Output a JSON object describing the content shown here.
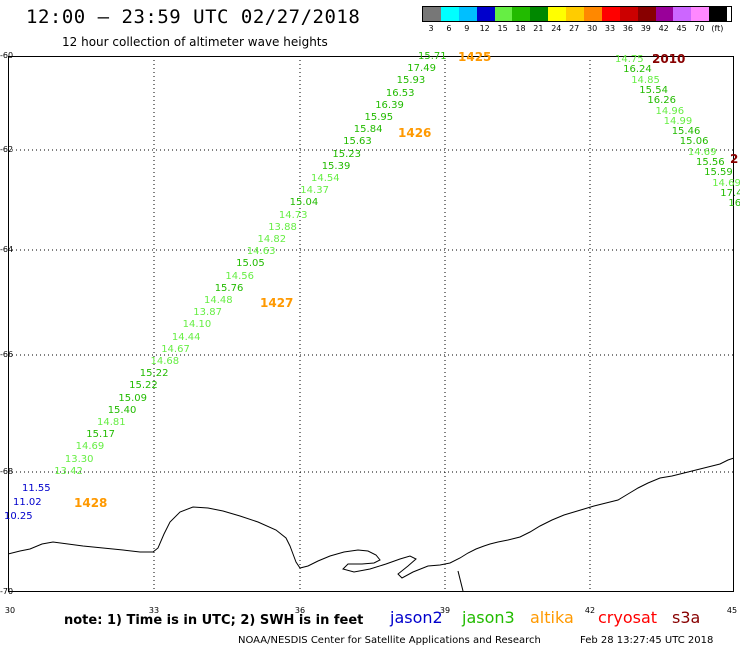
{
  "title": "12:00 – 23:59 UTC 02/27/2018",
  "subtitle": "12 hour collection of altimeter wave heights",
  "scale": {
    "labels": [
      "3",
      "6",
      "9",
      "12",
      "15",
      "18",
      "21",
      "24",
      "27",
      "30",
      "33",
      "36",
      "39",
      "42",
      "45",
      "70",
      "(ft)"
    ],
    "colors": [
      "#777777",
      "#00ffff",
      "#00bfff",
      "#0000cc",
      "#66ee44",
      "#22bb00",
      "#008800",
      "#ffff00",
      "#ffcc00",
      "#ff8800",
      "#ff0000",
      "#cc0000",
      "#880000",
      "#990099",
      "#cc66ff",
      "#ff88ff",
      "#000000"
    ]
  },
  "axes": {
    "y_ticks": [
      "-60",
      "-62",
      "-64",
      "-66",
      "-68",
      "-70"
    ],
    "x_ticks": [
      "30",
      "33",
      "36",
      "39",
      "42",
      "45"
    ]
  },
  "track1": {
    "values": [
      "15.71",
      "17.49",
      "15.93",
      "16.53",
      "16.39",
      "15.95",
      "15.84",
      "15.63",
      "15.23",
      "15.39",
      "14.54",
      "14.37",
      "15.04",
      "14.73",
      "13.88",
      "14.82",
      "14.63",
      "15.05",
      "14.56",
      "15.76",
      "14.48",
      "13.87",
      "14.10",
      "14.44",
      "14.67",
      "14.68",
      "15.22",
      "15.22",
      "15.09",
      "15.40",
      "14.81",
      "15.17",
      "14.69",
      "13.30",
      "13.42",
      "11.55",
      "11.02",
      "10.25"
    ],
    "colors": [
      "#22bb00",
      "#22bb00",
      "#22bb00",
      "#22bb00",
      "#22bb00",
      "#22bb00",
      "#22bb00",
      "#22bb00",
      "#22bb00",
      "#22bb00",
      "#66ee44",
      "#66ee44",
      "#22bb00",
      "#66ee44",
      "#66ee44",
      "#66ee44",
      "#66ee44",
      "#22bb00",
      "#66ee44",
      "#22bb00",
      "#66ee44",
      "#66ee44",
      "#66ee44",
      "#66ee44",
      "#66ee44",
      "#66ee44",
      "#22bb00",
      "#22bb00",
      "#22bb00",
      "#22bb00",
      "#66ee44",
      "#22bb00",
      "#66ee44",
      "#66ee44",
      "#66ee44",
      "#0000cc",
      "#0000cc",
      "#0000cc"
    ]
  },
  "track2": {
    "values": [
      "14.75",
      "16.24",
      "14.85",
      "15.54",
      "16.26",
      "14.96",
      "14.99",
      "15.46",
      "15.06",
      "14.69",
      "15.56",
      "15.59",
      "14.69",
      "17.4",
      "16"
    ],
    "colors": [
      "#66ee44",
      "#22bb00",
      "#66ee44",
      "#22bb00",
      "#22bb00",
      "#66ee44",
      "#66ee44",
      "#22bb00",
      "#22bb00",
      "#66ee44",
      "#22bb00",
      "#22bb00",
      "#66ee44",
      "#22bb00",
      "#22bb00"
    ]
  },
  "passes": [
    {
      "label": "1425",
      "color": "#ff9900"
    },
    {
      "label": "1426",
      "color": "#ff9900"
    },
    {
      "label": "1427",
      "color": "#ff9900"
    },
    {
      "label": "1428",
      "color": "#ff9900"
    },
    {
      "label": "2010",
      "color": "#880000"
    },
    {
      "label": "2",
      "color": "#880000"
    }
  ],
  "note": "note: 1) Time is in UTC; 2) SWH is in feet",
  "legend": [
    {
      "name": "jason2",
      "color": "#0000cc"
    },
    {
      "name": "jason3",
      "color": "#22bb00"
    },
    {
      "name": "altika",
      "color": "#ff9900"
    },
    {
      "name": "cryosat",
      "color": "#ff0000"
    },
    {
      "name": "s3a",
      "color": "#880000"
    }
  ],
  "credit": "NOAA/NESDIS Center for Satellite Applications and Research",
  "timestamp": "Feb 28 13:27:45 UTC 2018"
}
